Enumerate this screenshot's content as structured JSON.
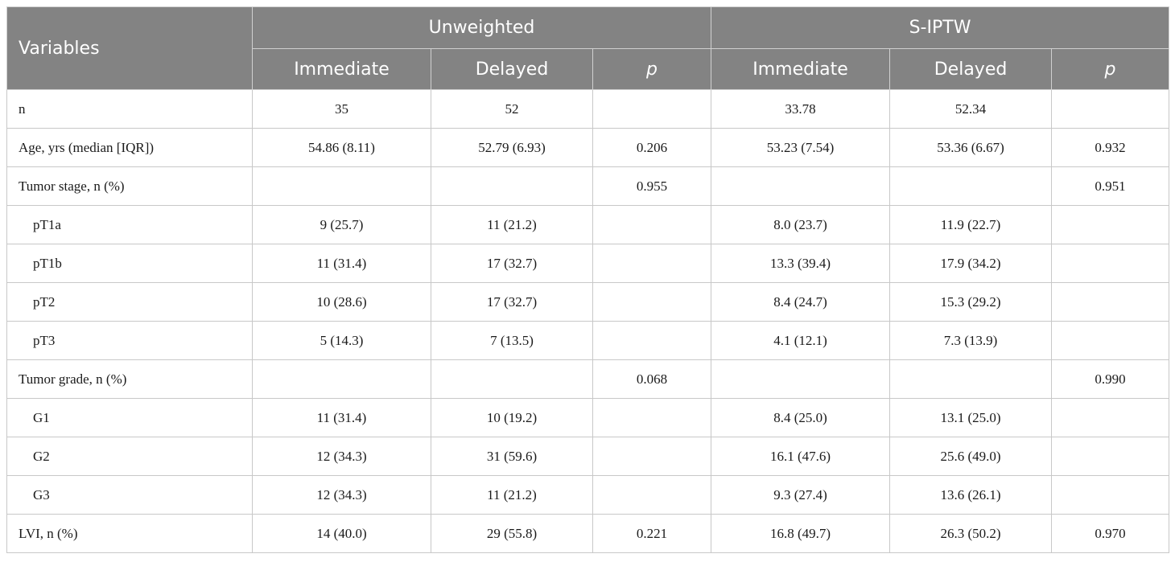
{
  "header": {
    "variables": "Variables",
    "group_unweighted": "Unweighted",
    "group_siptw": "S-IPTW",
    "col_immediate": "Immediate",
    "col_delayed": "Delayed",
    "col_p": "p"
  },
  "rows": [
    {
      "label": "n",
      "indent": false,
      "cells": [
        "35",
        "52",
        "",
        "33.78",
        "52.34",
        ""
      ]
    },
    {
      "label": "Age, yrs (median [IQR])",
      "indent": false,
      "cells": [
        "54.86 (8.11)",
        "52.79 (6.93)",
        "0.206",
        "53.23 (7.54)",
        "53.36 (6.67)",
        "0.932"
      ]
    },
    {
      "label": "Tumor stage, n (%)",
      "indent": false,
      "cells": [
        "",
        "",
        "0.955",
        "",
        "",
        "0.951"
      ]
    },
    {
      "label": "pT1a",
      "indent": true,
      "cells": [
        "9 (25.7)",
        "11 (21.2)",
        "",
        "8.0 (23.7)",
        "11.9 (22.7)",
        ""
      ]
    },
    {
      "label": "pT1b",
      "indent": true,
      "cells": [
        "11 (31.4)",
        "17 (32.7)",
        "",
        "13.3 (39.4)",
        "17.9 (34.2)",
        ""
      ]
    },
    {
      "label": "pT2",
      "indent": true,
      "cells": [
        "10 (28.6)",
        "17 (32.7)",
        "",
        "8.4 (24.7)",
        "15.3 (29.2)",
        ""
      ]
    },
    {
      "label": "pT3",
      "indent": true,
      "cells": [
        "5 (14.3)",
        "7 (13.5)",
        "",
        "4.1 (12.1)",
        "7.3 (13.9)",
        ""
      ]
    },
    {
      "label": "Tumor grade, n (%)",
      "indent": false,
      "cells": [
        "",
        "",
        "0.068",
        "",
        "",
        "0.990"
      ]
    },
    {
      "label": "G1",
      "indent": true,
      "cells": [
        "11 (31.4)",
        "10 (19.2)",
        "",
        "8.4 (25.0)",
        "13.1 (25.0)",
        ""
      ]
    },
    {
      "label": "G2",
      "indent": true,
      "cells": [
        "12 (34.3)",
        "31 (59.6)",
        "",
        "16.1 (47.6)",
        "25.6 (49.0)",
        ""
      ]
    },
    {
      "label": "G3",
      "indent": true,
      "cells": [
        "12 (34.3)",
        "11 (21.2)",
        "",
        "9.3 (27.4)",
        "13.6 (26.1)",
        ""
      ]
    },
    {
      "label": "LVI, n (%)",
      "indent": false,
      "cells": [
        "14 (40.0)",
        "29 (55.8)",
        "0.221",
        "16.8 (49.7)",
        "26.3 (50.2)",
        "0.970"
      ]
    }
  ]
}
